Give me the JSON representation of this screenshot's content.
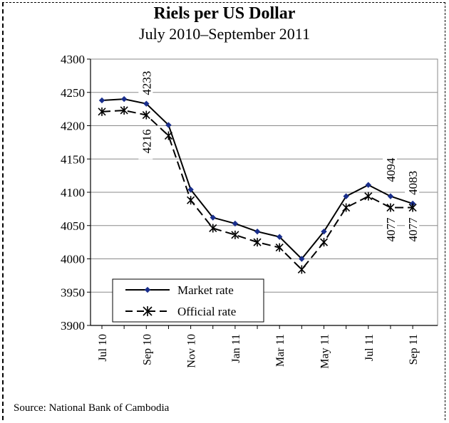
{
  "chart_data": {
    "type": "line",
    "title": "Riels per US Dollar",
    "subtitle": "July 2010–September 2011",
    "xlabel": "",
    "ylabel": "",
    "ylim": [
      3900,
      4300
    ],
    "yticks": [
      3900,
      3950,
      4000,
      4050,
      4100,
      4150,
      4200,
      4250,
      4300
    ],
    "x": [
      "Jul 10",
      "Aug 10",
      "Sep 10",
      "Oct 10",
      "Nov 10",
      "Dec 10",
      "Jan 11",
      "Feb 11",
      "Mar 11",
      "Apr 11",
      "May 11",
      "Jun 11",
      "Jul 11",
      "Aug 11",
      "Sep 11"
    ],
    "x_tick_labels": [
      "Jul 10",
      "Sep 10",
      "Nov 10",
      "Jan 11",
      "Mar 11",
      "May 11",
      "Jul 11",
      "Sep 11"
    ],
    "grid": "horizontal",
    "legend_position": "bottom-left",
    "series": [
      {
        "name": "Market rate",
        "marker": "diamond",
        "line_style": "solid",
        "color": "#000000",
        "marker_color": "#1a2f8c",
        "values": [
          4238,
          4240,
          4233,
          4201,
          4104,
          4062,
          4053,
          4041,
          4033,
          4000,
          4041,
          4094,
          4111,
          4094,
          4083
        ]
      },
      {
        "name": "Official rate",
        "marker": "asterisk",
        "line_style": "dashed",
        "color": "#000000",
        "marker_color": "#000000",
        "values": [
          4221,
          4223,
          4216,
          4185,
          4088,
          4046,
          4036,
          4025,
          4017,
          3984,
          4025,
          4077,
          4094,
          4077,
          4077
        ]
      }
    ],
    "annotations": [
      {
        "text": "4233",
        "series": 0,
        "index": 2
      },
      {
        "text": "4216",
        "series": 1,
        "index": 2
      },
      {
        "text": "4094",
        "series": 0,
        "index": 13
      },
      {
        "text": "4083",
        "series": 0,
        "index": 14
      },
      {
        "text": "4077",
        "series": 1,
        "index": 13
      },
      {
        "text": "4077",
        "series": 1,
        "index": 14
      }
    ]
  },
  "source": "Source: National Bank of Cambodia"
}
